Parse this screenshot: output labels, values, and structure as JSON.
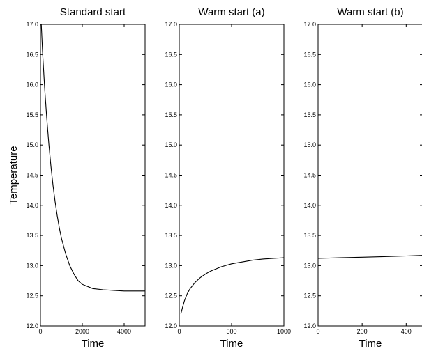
{
  "chart_data": [
    {
      "type": "line",
      "title": "Standard start",
      "xlabel": "Time",
      "ylabel": "Temperature",
      "xlim": [
        0,
        5000
      ],
      "ylim": [
        12.0,
        17.0
      ],
      "xticks": [
        0,
        2000,
        4000
      ],
      "xtick_labels": [
        "0",
        "2000",
        "4000"
      ],
      "yticks": [
        12.0,
        12.5,
        13.0,
        13.5,
        14.0,
        14.5,
        15.0,
        15.5,
        16.0,
        16.5,
        17.0
      ],
      "ytick_labels": [
        "12.0",
        "12.5",
        "13.0",
        "13.5",
        "14.0",
        "14.5",
        "15.0",
        "15.5",
        "16.0",
        "16.5",
        "17.0"
      ],
      "grid": false,
      "series": [
        {
          "x": [
            40,
            100,
            200,
            300,
            400,
            500,
            600,
            700,
            800,
            900,
            1000,
            1200,
            1400,
            1600,
            1800,
            2000,
            2500,
            3000,
            3500,
            4000,
            4500,
            5000
          ],
          "y": [
            17.0,
            16.55,
            15.95,
            15.45,
            15.02,
            14.65,
            14.33,
            14.06,
            13.83,
            13.63,
            13.46,
            13.2,
            13.0,
            12.86,
            12.75,
            12.69,
            12.62,
            12.6,
            12.59,
            12.58,
            12.58,
            12.58
          ]
        }
      ]
    },
    {
      "type": "line",
      "title": "Warm start (a)",
      "xlabel": "Time",
      "ylabel": "",
      "xlim": [
        0,
        1000
      ],
      "ylim": [
        12.0,
        17.0
      ],
      "xticks": [
        0,
        500,
        1000
      ],
      "xtick_labels": [
        "0",
        "500",
        "1000"
      ],
      "yticks": [
        12.0,
        12.5,
        13.0,
        13.5,
        14.0,
        14.5,
        15.0,
        15.5,
        16.0,
        16.5,
        17.0
      ],
      "ytick_labels": [
        "12.0",
        "12.5",
        "13.0",
        "13.5",
        "14.0",
        "14.5",
        "15.0",
        "15.5",
        "16.0",
        "16.5",
        "17.0"
      ],
      "grid": false,
      "series": [
        {
          "x": [
            15,
            30,
            50,
            75,
            100,
            150,
            200,
            250,
            300,
            400,
            500,
            600,
            700,
            800,
            900,
            1000
          ],
          "y": [
            12.2,
            12.3,
            12.42,
            12.53,
            12.61,
            12.72,
            12.8,
            12.86,
            12.91,
            12.98,
            13.03,
            13.06,
            13.09,
            13.11,
            13.12,
            13.13
          ]
        }
      ]
    },
    {
      "type": "line",
      "title": "Warm start (b)",
      "xlabel": "Time",
      "ylabel": "",
      "xlim": [
        0,
        475
      ],
      "ylim": [
        12.0,
        17.0
      ],
      "xticks": [
        0,
        200,
        400
      ],
      "xtick_labels": [
        "0",
        "200",
        "400"
      ],
      "yticks": [
        12.0,
        12.5,
        13.0,
        13.5,
        14.0,
        14.5,
        15.0,
        15.5,
        16.0,
        16.5,
        17.0
      ],
      "ytick_labels": [
        "12.0",
        "12.5",
        "13.0",
        "13.5",
        "14.0",
        "14.5",
        "15.0",
        "15.5",
        "16.0",
        "16.5",
        "17.0"
      ],
      "grid": false,
      "series": [
        {
          "x": [
            0,
            100,
            200,
            300,
            400,
            475
          ],
          "y": [
            13.12,
            13.13,
            13.14,
            13.15,
            13.16,
            13.17
          ]
        }
      ]
    }
  ]
}
